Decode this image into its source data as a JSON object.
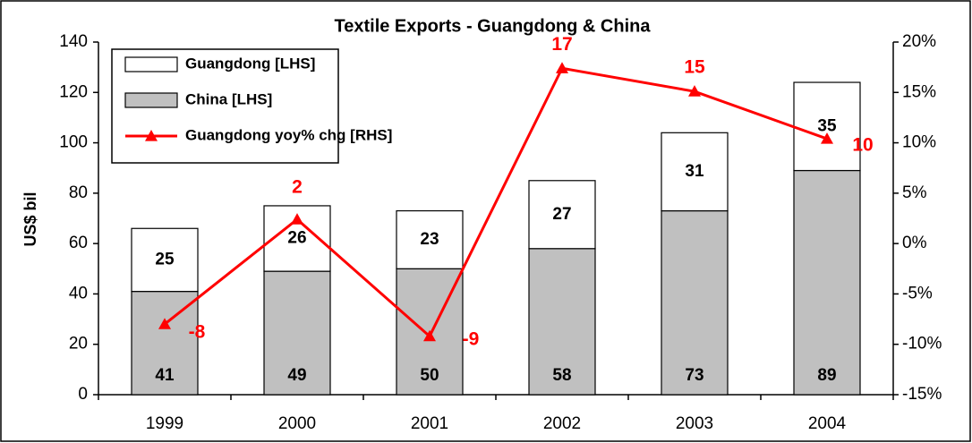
{
  "chart_data": {
    "type": "bar",
    "title": "Textile Exports - Guangdong & China",
    "y_label": "US$ bil",
    "categories": [
      "1999",
      "2000",
      "2001",
      "2002",
      "2003",
      "2004"
    ],
    "stacked": true,
    "series": [
      {
        "name": "Guangdong [LHS]",
        "color": "#ffffff",
        "type": "bar",
        "values": [
          25,
          26,
          23,
          27,
          31,
          35
        ]
      },
      {
        "name": "China [LHS]",
        "color": "#c0c0c0",
        "type": "bar",
        "values": [
          41,
          49,
          50,
          58,
          73,
          89
        ]
      },
      {
        "name": "Guangdong yoy% chg [RHS]",
        "color": "#ff0000",
        "type": "line",
        "axis": "y2",
        "marker": "triangle",
        "values": [
          -8,
          2.4,
          -9.2,
          17.4,
          15.1,
          10.4
        ],
        "value_labels": [
          "-8",
          "2",
          "-9",
          "17",
          "15",
          "10"
        ]
      }
    ],
    "ylim": [
      0,
      140
    ],
    "yticks": [
      0,
      20,
      40,
      60,
      80,
      100,
      120,
      140
    ],
    "y2lim": [
      -15,
      20
    ],
    "y2ticks": [
      {
        "value": -15,
        "label": "-15%"
      },
      {
        "value": -10,
        "label": "-10%"
      },
      {
        "value": -5,
        "label": "-5%"
      },
      {
        "value": 0,
        "label": "0%"
      },
      {
        "value": 5,
        "label": "5%"
      },
      {
        "value": 10,
        "label": "10%"
      },
      {
        "value": 15,
        "label": "15%"
      },
      {
        "value": 20,
        "label": "20%"
      }
    ],
    "legend": "top-left"
  }
}
